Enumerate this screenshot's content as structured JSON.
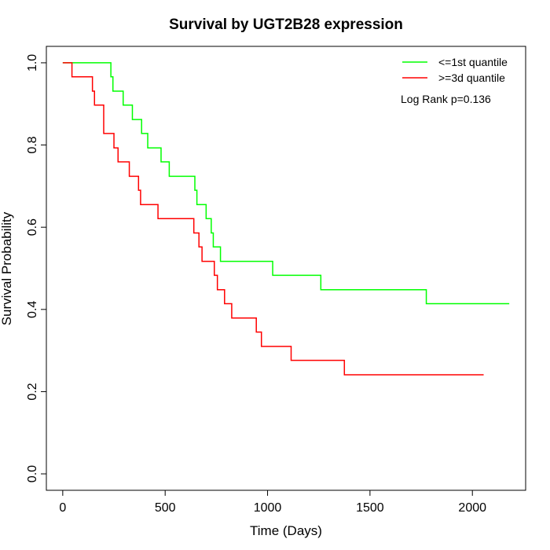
{
  "chart_data": {
    "type": "line",
    "subtype": "step",
    "title": "Survival by UGT2B28 expression",
    "xlabel": "Time (Days)",
    "ylabel": "Survival Probability",
    "xlim": [
      -80,
      2260
    ],
    "ylim": [
      -0.04,
      1.04
    ],
    "xticks": [
      0,
      500,
      1000,
      1500,
      2000
    ],
    "yticks": [
      0.0,
      0.2,
      0.4,
      0.6,
      0.8,
      1.0
    ],
    "xtick_labels": [
      "0",
      "500",
      "1000",
      "1500",
      "2000"
    ],
    "ytick_labels": [
      "0.0",
      "0.2",
      "0.4",
      "0.6",
      "0.8",
      "1.0"
    ],
    "grid": false,
    "legend_position": "top-right",
    "annotation": "Log Rank p=0.136",
    "series": [
      {
        "name": "<=1st quantile",
        "color": "#00ff00",
        "x": [
          0,
          235,
          245,
          255,
          295,
          340,
          385,
          415,
          480,
          520,
          645,
          655,
          675,
          700,
          725,
          735,
          750,
          770,
          1025,
          1260,
          1775,
          2180
        ],
        "y": [
          1.0,
          0.966,
          0.931,
          0.931,
          0.897,
          0.862,
          0.828,
          0.793,
          0.759,
          0.724,
          0.69,
          0.655,
          0.655,
          0.621,
          0.586,
          0.552,
          0.552,
          0.517,
          0.483,
          0.448,
          0.414,
          0.414
        ]
      },
      {
        "name": ">=3d quantile",
        "color": "#ff0000",
        "x": [
          0,
          45,
          145,
          155,
          200,
          250,
          270,
          325,
          370,
          380,
          465,
          640,
          665,
          680,
          740,
          755,
          790,
          825,
          945,
          970,
          1115,
          1375,
          2055
        ],
        "y": [
          1.0,
          0.966,
          0.931,
          0.897,
          0.828,
          0.793,
          0.759,
          0.724,
          0.69,
          0.655,
          0.621,
          0.586,
          0.552,
          0.517,
          0.483,
          0.448,
          0.414,
          0.379,
          0.345,
          0.31,
          0.276,
          0.241,
          0.241
        ]
      }
    ]
  }
}
